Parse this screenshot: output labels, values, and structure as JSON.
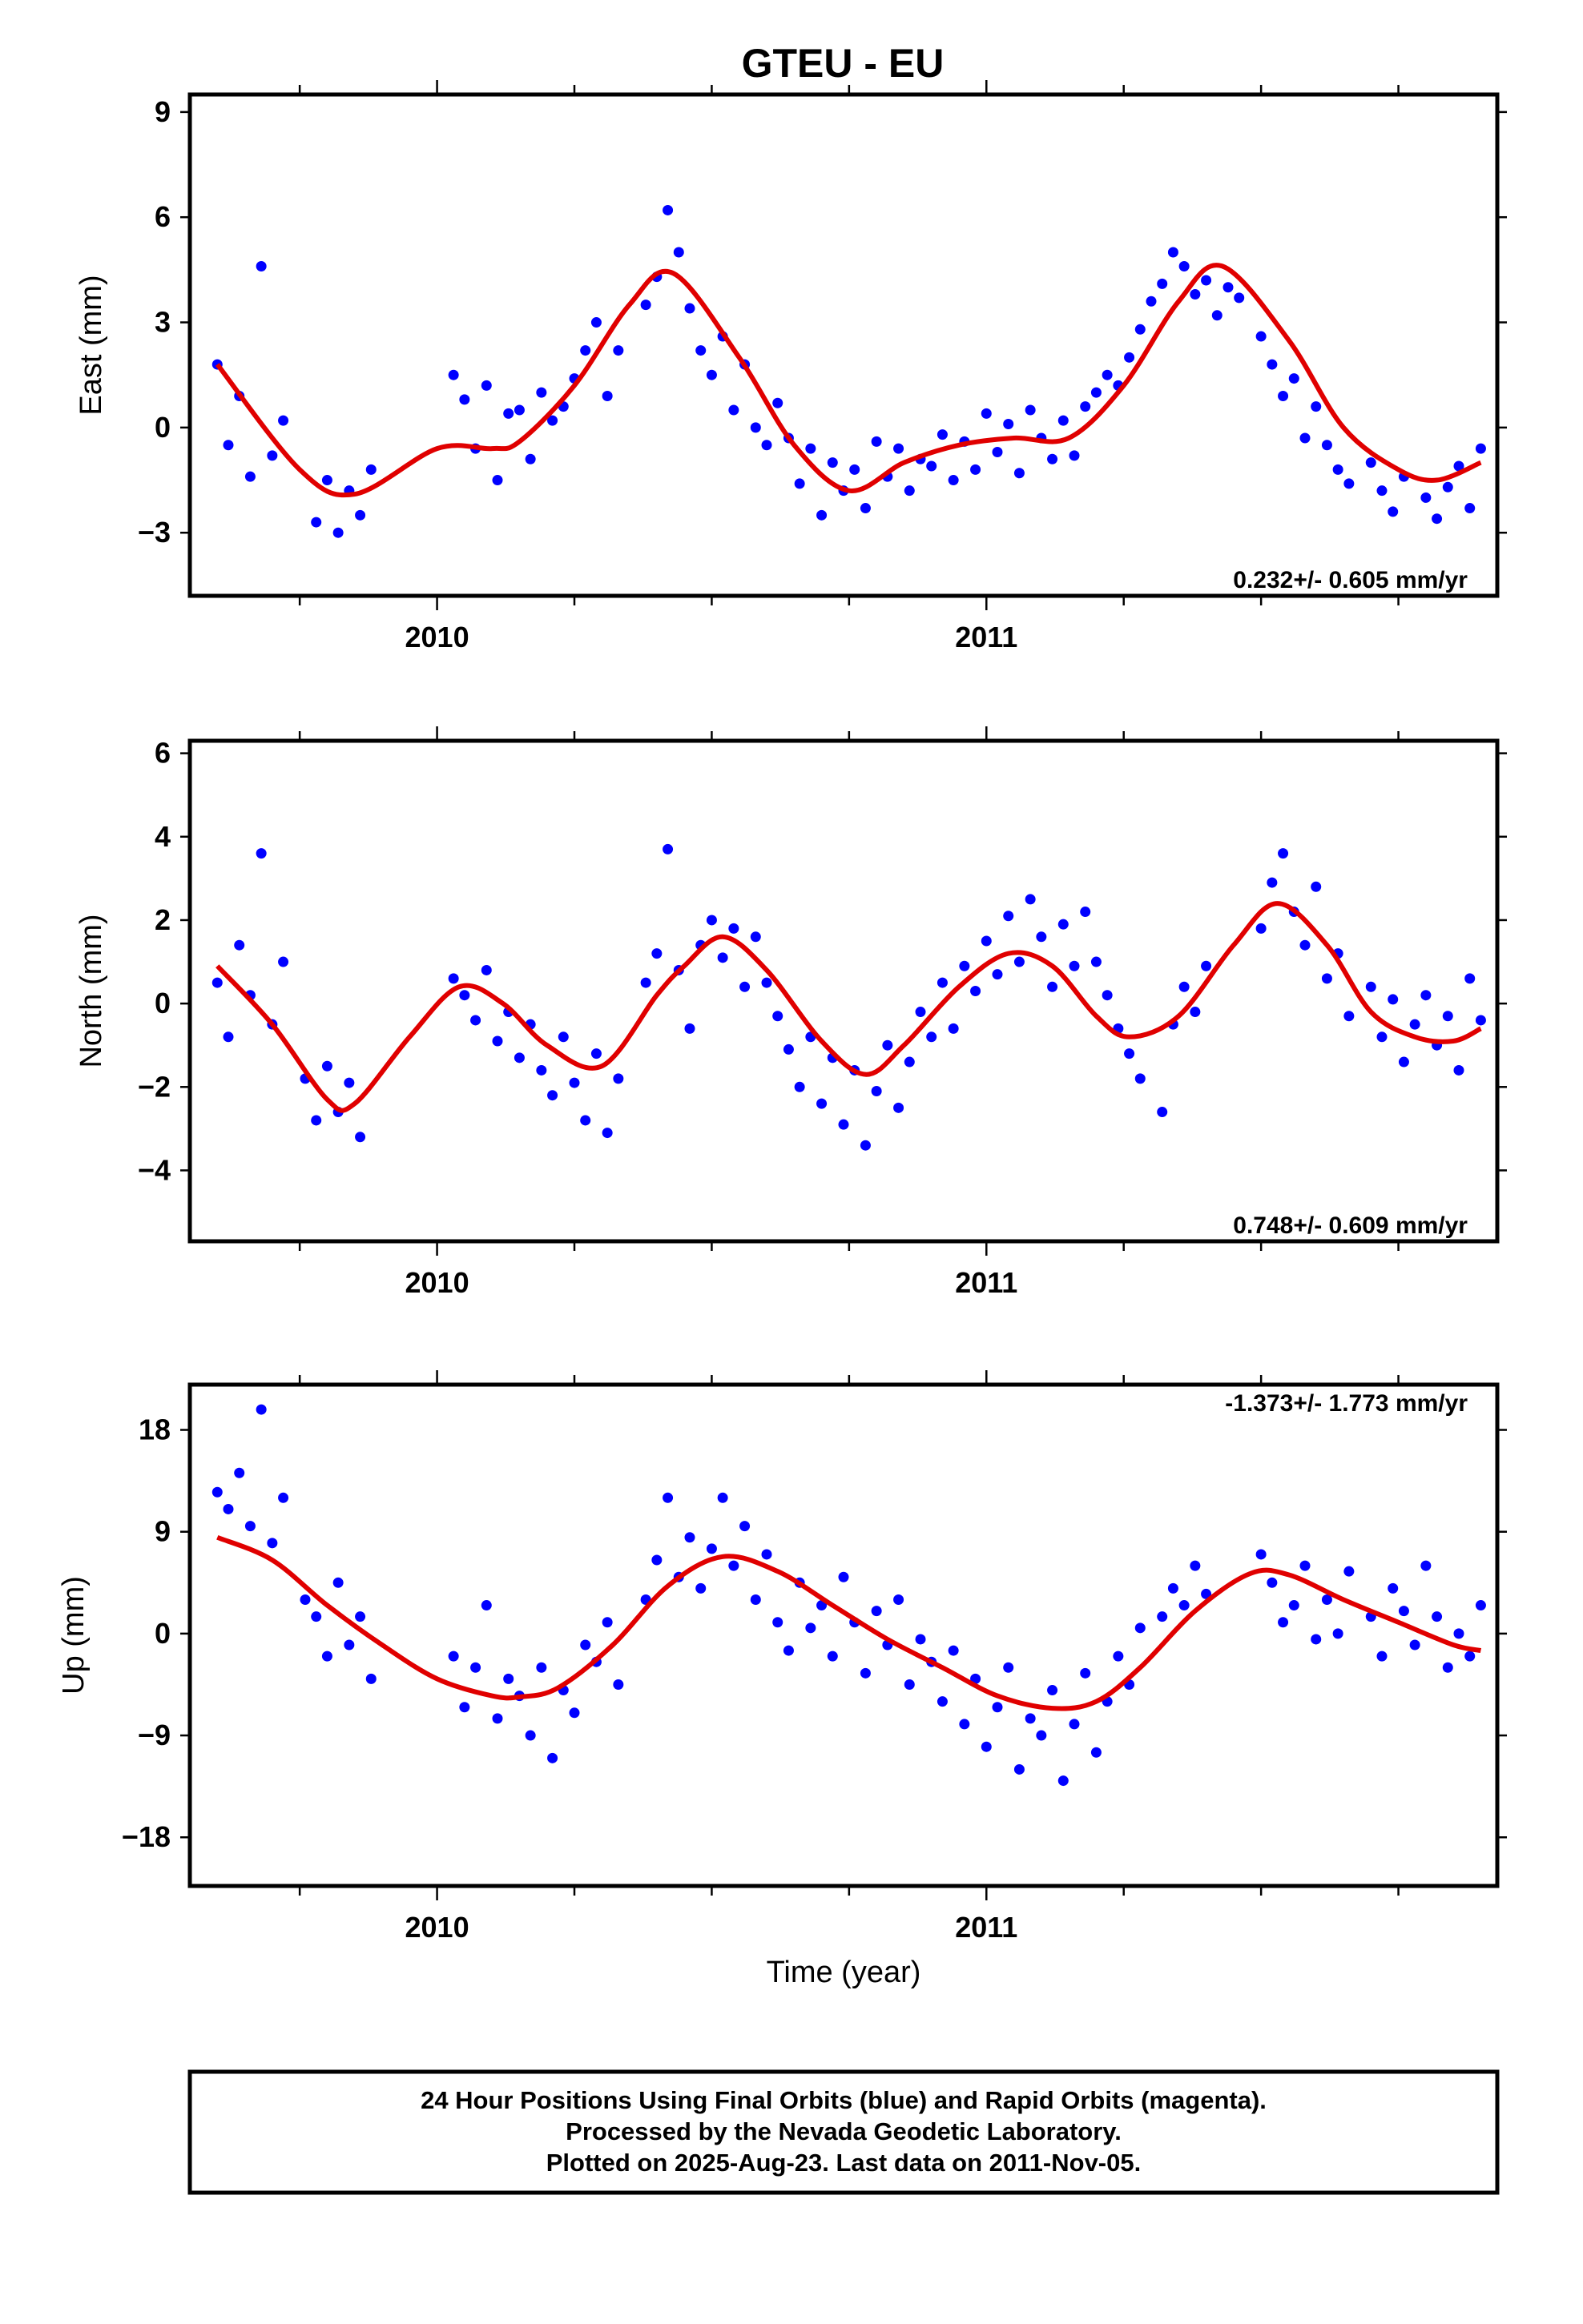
{
  "chart_data": [
    {
      "type": "scatter",
      "title": "GTEU - EU",
      "ylabel": "East (mm)",
      "xlabel": "",
      "xlim": [
        2009.55,
        2011.93
      ],
      "ylim": [
        -4.8,
        9.5
      ],
      "yticks": [
        -3,
        0,
        3,
        6,
        9
      ],
      "xtick_labels": [
        "2010",
        "2011"
      ],
      "xtick_values": [
        2010,
        2011
      ],
      "rate_label": "0.232+/- 0.605 mm/yr",
      "grid": false,
      "fit_curve": {
        "color": "#e00000",
        "x": [
          2009.6,
          2009.75,
          2009.85,
          2010.0,
          2010.1,
          2010.15,
          2010.25,
          2010.35,
          2010.43,
          2010.55,
          2010.65,
          2010.75,
          2010.85,
          2010.95,
          2011.05,
          2011.15,
          2011.25,
          2011.35,
          2011.43,
          2011.55,
          2011.65,
          2011.75,
          2011.82,
          2011.9
        ],
        "y": [
          1.8,
          -1.2,
          -1.9,
          -0.6,
          -0.6,
          -0.4,
          1.2,
          3.5,
          4.4,
          2.0,
          -0.5,
          -1.8,
          -1.0,
          -0.5,
          -0.3,
          -0.3,
          1.2,
          3.6,
          4.6,
          2.5,
          0.0,
          -1.2,
          -1.5,
          -1.0
        ]
      },
      "samples": {
        "color": "#0000ff",
        "x": [
          2009.6,
          2009.62,
          2009.64,
          2009.66,
          2009.68,
          2009.7,
          2009.72,
          2009.78,
          2009.8,
          2009.82,
          2009.84,
          2009.86,
          2009.88,
          2010.03,
          2010.05,
          2010.07,
          2010.09,
          2010.11,
          2010.13,
          2010.15,
          2010.17,
          2010.19,
          2010.21,
          2010.23,
          2010.25,
          2010.27,
          2010.29,
          2010.31,
          2010.33,
          2010.38,
          2010.4,
          2010.42,
          2010.44,
          2010.46,
          2010.48,
          2010.5,
          2010.52,
          2010.54,
          2010.56,
          2010.58,
          2010.6,
          2010.62,
          2010.64,
          2010.66,
          2010.68,
          2010.7,
          2010.72,
          2010.74,
          2010.76,
          2010.78,
          2010.8,
          2010.82,
          2010.84,
          2010.86,
          2010.88,
          2010.9,
          2010.92,
          2010.94,
          2010.96,
          2010.98,
          2011.0,
          2011.02,
          2011.04,
          2011.06,
          2011.08,
          2011.1,
          2011.12,
          2011.14,
          2011.16,
          2011.18,
          2011.2,
          2011.22,
          2011.24,
          2011.26,
          2011.28,
          2011.3,
          2011.32,
          2011.34,
          2011.36,
          2011.38,
          2011.4,
          2011.42,
          2011.44,
          2011.46,
          2011.5,
          2011.52,
          2011.54,
          2011.56,
          2011.58,
          2011.6,
          2011.62,
          2011.64,
          2011.66,
          2011.7,
          2011.72,
          2011.74,
          2011.76,
          2011.8,
          2011.82,
          2011.84,
          2011.86,
          2011.88,
          2011.9
        ],
        "y": [
          1.8,
          -0.5,
          0.9,
          -1.4,
          4.6,
          -0.8,
          0.2,
          -2.7,
          -1.5,
          -3.0,
          -1.8,
          -2.5,
          -1.2,
          1.5,
          0.8,
          -0.6,
          1.2,
          -1.5,
          0.4,
          0.5,
          -0.9,
          1.0,
          0.2,
          0.6,
          1.4,
          2.2,
          3.0,
          0.9,
          2.2,
          3.5,
          4.3,
          6.2,
          5.0,
          3.4,
          2.2,
          1.5,
          2.6,
          0.5,
          1.8,
          0.0,
          -0.5,
          0.7,
          -0.3,
          -1.6,
          -0.6,
          -2.5,
          -1.0,
          -1.8,
          -1.2,
          -2.3,
          -0.4,
          -1.4,
          -0.6,
          -1.8,
          -0.9,
          -1.1,
          -0.2,
          -1.5,
          -0.4,
          -1.2,
          0.4,
          -0.7,
          0.1,
          -1.3,
          0.5,
          -0.3,
          -0.9,
          0.2,
          -0.8,
          0.6,
          1.0,
          1.5,
          1.2,
          2.0,
          2.8,
          3.6,
          4.1,
          5.0,
          4.6,
          3.8,
          4.2,
          3.2,
          4.0,
          3.7,
          2.6,
          1.8,
          0.9,
          1.4,
          -0.3,
          0.6,
          -0.5,
          -1.2,
          -1.6,
          -1.0,
          -1.8,
          -2.4,
          -1.4,
          -2.0,
          -2.6,
          -1.7,
          -1.1,
          -2.3,
          -0.6
        ]
      }
    },
    {
      "type": "scatter",
      "title": "",
      "ylabel": "North (mm)",
      "xlabel": "",
      "xlim": [
        2009.55,
        2011.93
      ],
      "ylim": [
        -5.7,
        6.3
      ],
      "yticks": [
        -4,
        -2,
        0,
        2,
        4,
        6
      ],
      "xtick_labels": [
        "2010",
        "2011"
      ],
      "xtick_values": [
        2010,
        2011
      ],
      "rate_label": "0.748+/- 0.609 mm/yr",
      "grid": false,
      "fit_curve": {
        "color": "#e00000",
        "x": [
          2009.6,
          2009.7,
          2009.8,
          2009.85,
          2009.95,
          2010.04,
          2010.12,
          2010.2,
          2010.3,
          2010.4,
          2010.45,
          2010.52,
          2010.6,
          2010.7,
          2010.78,
          2010.85,
          2010.95,
          2011.04,
          2011.12,
          2011.2,
          2011.26,
          2011.35,
          2011.45,
          2011.53,
          2011.62,
          2011.7,
          2011.78,
          2011.85,
          2011.9
        ],
        "y": [
          0.9,
          -0.5,
          -2.3,
          -2.4,
          -0.8,
          0.4,
          0.0,
          -1.0,
          -1.5,
          0.2,
          0.9,
          1.6,
          0.8,
          -0.9,
          -1.7,
          -1.0,
          0.4,
          1.2,
          0.9,
          -0.3,
          -0.8,
          -0.3,
          1.4,
          2.4,
          1.4,
          -0.2,
          -0.8,
          -0.9,
          -0.6
        ]
      },
      "samples": {
        "color": "#0000ff",
        "x": [
          2009.6,
          2009.62,
          2009.64,
          2009.66,
          2009.68,
          2009.7,
          2009.72,
          2009.76,
          2009.78,
          2009.8,
          2009.82,
          2009.84,
          2009.86,
          2010.03,
          2010.05,
          2010.07,
          2010.09,
          2010.11,
          2010.13,
          2010.15,
          2010.17,
          2010.19,
          2010.21,
          2010.23,
          2010.25,
          2010.27,
          2010.29,
          2010.31,
          2010.33,
          2010.38,
          2010.4,
          2010.42,
          2010.44,
          2010.46,
          2010.48,
          2010.5,
          2010.52,
          2010.54,
          2010.56,
          2010.58,
          2010.6,
          2010.62,
          2010.64,
          2010.66,
          2010.68,
          2010.7,
          2010.72,
          2010.74,
          2010.76,
          2010.78,
          2010.8,
          2010.82,
          2010.84,
          2010.86,
          2010.88,
          2010.9,
          2010.92,
          2010.94,
          2010.96,
          2010.98,
          2011.0,
          2011.02,
          2011.04,
          2011.06,
          2011.08,
          2011.1,
          2011.12,
          2011.14,
          2011.16,
          2011.18,
          2011.2,
          2011.22,
          2011.24,
          2011.26,
          2011.28,
          2011.32,
          2011.34,
          2011.36,
          2011.38,
          2011.4,
          2011.5,
          2011.52,
          2011.54,
          2011.56,
          2011.58,
          2011.6,
          2011.62,
          2011.64,
          2011.66,
          2011.7,
          2011.72,
          2011.74,
          2011.76,
          2011.78,
          2011.8,
          2011.82,
          2011.84,
          2011.86,
          2011.88,
          2011.9
        ],
        "y": [
          0.5,
          -0.8,
          1.4,
          0.2,
          3.6,
          -0.5,
          1.0,
          -1.8,
          -2.8,
          -1.5,
          -2.6,
          -1.9,
          -3.2,
          0.6,
          0.2,
          -0.4,
          0.8,
          -0.9,
          -0.2,
          -1.3,
          -0.5,
          -1.6,
          -2.2,
          -0.8,
          -1.9,
          -2.8,
          -1.2,
          -3.1,
          -1.8,
          0.5,
          1.2,
          3.7,
          0.8,
          -0.6,
          1.4,
          2.0,
          1.1,
          1.8,
          0.4,
          1.6,
          0.5,
          -0.3,
          -1.1,
          -2.0,
          -0.8,
          -2.4,
          -1.3,
          -2.9,
          -1.6,
          -3.4,
          -2.1,
          -1.0,
          -2.5,
          -1.4,
          -0.2,
          -0.8,
          0.5,
          -0.6,
          0.9,
          0.3,
          1.5,
          0.7,
          2.1,
          1.0,
          2.5,
          1.6,
          0.4,
          1.9,
          0.9,
          2.2,
          1.0,
          0.2,
          -0.6,
          -1.2,
          -1.8,
          -2.6,
          -0.5,
          0.4,
          -0.2,
          0.9,
          1.8,
          2.9,
          3.6,
          2.2,
          1.4,
          2.8,
          0.6,
          1.2,
          -0.3,
          0.4,
          -0.8,
          0.1,
          -1.4,
          -0.5,
          0.2,
          -1.0,
          -0.3,
          -1.6,
          0.6,
          -0.4
        ]
      }
    },
    {
      "type": "scatter",
      "title": "",
      "ylabel": "Up (mm)",
      "xlabel": "Time (year)",
      "xlim": [
        2009.55,
        2011.93
      ],
      "ylim": [
        -22.3,
        22.0
      ],
      "yticks": [
        -18,
        -9,
        0,
        9,
        18
      ],
      "ytick_labels": [
        "−18",
        "−9",
        "0",
        "9",
        "18"
      ],
      "xtick_labels": [
        "2010",
        "2011"
      ],
      "xtick_values": [
        2010,
        2011
      ],
      "rate_label": "-1.373+/- 1.773 mm/yr",
      "grid": false,
      "fit_curve": {
        "color": "#e00000",
        "x": [
          2009.6,
          2009.7,
          2009.8,
          2009.9,
          2010.0,
          2010.1,
          2010.15,
          2010.22,
          2010.32,
          2010.42,
          2010.52,
          2010.62,
          2010.72,
          2010.82,
          2010.92,
          2011.02,
          2011.12,
          2011.2,
          2011.28,
          2011.38,
          2011.48,
          2011.55,
          2011.65,
          2011.75,
          2011.85,
          2011.9
        ],
        "y": [
          8.5,
          6.5,
          2.5,
          -1.0,
          -4.0,
          -5.5,
          -5.6,
          -4.8,
          -1.0,
          4.2,
          6.8,
          5.5,
          2.5,
          -0.5,
          -3.0,
          -5.5,
          -6.6,
          -6.0,
          -3.0,
          2.0,
          5.3,
          5.2,
          3.0,
          1.0,
          -1.0,
          -1.5
        ]
      },
      "samples": {
        "color": "#0000ff",
        "x": [
          2009.6,
          2009.62,
          2009.64,
          2009.66,
          2009.68,
          2009.7,
          2009.72,
          2009.76,
          2009.78,
          2009.8,
          2009.82,
          2009.84,
          2009.86,
          2009.88,
          2010.03,
          2010.05,
          2010.07,
          2010.09,
          2010.11,
          2010.13,
          2010.15,
          2010.17,
          2010.19,
          2010.21,
          2010.23,
          2010.25,
          2010.27,
          2010.29,
          2010.31,
          2010.33,
          2010.38,
          2010.4,
          2010.42,
          2010.44,
          2010.46,
          2010.48,
          2010.5,
          2010.52,
          2010.54,
          2010.56,
          2010.58,
          2010.6,
          2010.62,
          2010.64,
          2010.66,
          2010.68,
          2010.7,
          2010.72,
          2010.74,
          2010.76,
          2010.78,
          2010.8,
          2010.82,
          2010.84,
          2010.86,
          2010.88,
          2010.9,
          2010.92,
          2010.94,
          2010.96,
          2010.98,
          2011.0,
          2011.02,
          2011.04,
          2011.06,
          2011.08,
          2011.1,
          2011.12,
          2011.14,
          2011.16,
          2011.18,
          2011.2,
          2011.22,
          2011.24,
          2011.26,
          2011.28,
          2011.32,
          2011.34,
          2011.36,
          2011.38,
          2011.4,
          2011.5,
          2011.52,
          2011.54,
          2011.56,
          2011.58,
          2011.6,
          2011.62,
          2011.64,
          2011.66,
          2011.7,
          2011.72,
          2011.74,
          2011.76,
          2011.78,
          2011.8,
          2011.82,
          2011.84,
          2011.86,
          2011.88,
          2011.9
        ],
        "y": [
          12.5,
          11.0,
          14.2,
          9.5,
          19.8,
          8.0,
          12.0,
          3.0,
          1.5,
          -2.0,
          4.5,
          -1.0,
          1.5,
          -4.0,
          -2.0,
          -6.5,
          -3.0,
          2.5,
          -7.5,
          -4.0,
          -5.5,
          -9.0,
          -3.0,
          -11.0,
          -5.0,
          -7.0,
          -1.0,
          -2.5,
          1.0,
          -4.5,
          3.0,
          6.5,
          12.0,
          5.0,
          8.5,
          4.0,
          7.5,
          12.0,
          6.0,
          9.5,
          3.0,
          7.0,
          1.0,
          -1.5,
          4.5,
          0.5,
          2.5,
          -2.0,
          5.0,
          1.0,
          -3.5,
          2.0,
          -1.0,
          3.0,
          -4.5,
          -0.5,
          -2.5,
          -6.0,
          -1.5,
          -8.0,
          -4.0,
          -10.0,
          -6.5,
          -3.0,
          -12.0,
          -7.5,
          -9.0,
          -5.0,
          -13.0,
          -8.0,
          -3.5,
          -10.5,
          -6.0,
          -2.0,
          -4.5,
          0.5,
          1.5,
          4.0,
          2.5,
          6.0,
          3.5,
          7.0,
          4.5,
          1.0,
          2.5,
          6.0,
          -0.5,
          3.0,
          0.0,
          5.5,
          1.5,
          -2.0,
          4.0,
          2.0,
          -1.0,
          6.0,
          1.5,
          -3.0,
          0.0,
          -2.0,
          2.5
        ]
      }
    }
  ],
  "footer": {
    "line1": "24 Hour Positions Using Final Orbits (blue) and Rapid Orbits (magenta).",
    "line2": "Processed by the Nevada Geodetic Laboratory.",
    "line3": "Plotted on 2025-Aug-23. Last data on 2011-Nov-05."
  }
}
